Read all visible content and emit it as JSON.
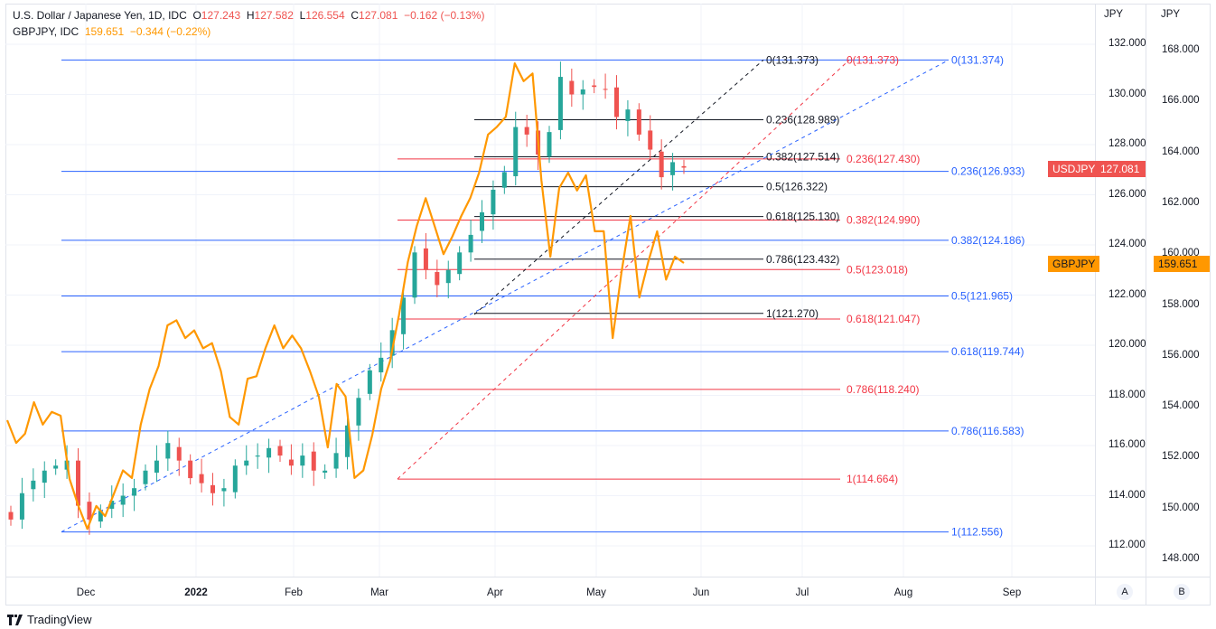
{
  "header": {
    "series1_title": "U.S. Dollar / Japanese Yen, 1D, IDC",
    "o_label": "O",
    "o_value": "127.243",
    "h_label": "H",
    "h_value": "127.582",
    "l_label": "L",
    "l_value": "126.554",
    "c_label": "C",
    "c_value": "127.081",
    "change": "−0.162 (−0.13%)",
    "series2_title": "GBPJPY, IDC",
    "series2_value": "159.651",
    "series2_change": "−0.344 (−0.22%)"
  },
  "axes": {
    "left_unit": "JPY",
    "right_unit": "JPY",
    "usdjpy_ticks": [
      "132.000",
      "130.000",
      "128.000",
      "126.000",
      "124.000",
      "122.000",
      "120.000",
      "118.000",
      "116.000",
      "114.000",
      "112.000"
    ],
    "gbpjpy_ticks": [
      "168.000",
      "166.000",
      "164.000",
      "162.000",
      "160.000",
      "158.000",
      "156.000",
      "154.000",
      "152.000",
      "150.000",
      "148.000"
    ],
    "time_ticks": [
      "Dec",
      "2022",
      "Feb",
      "Mar",
      "Apr",
      "May",
      "Jun",
      "Jul",
      "Aug",
      "Sep"
    ],
    "scale_buttons": [
      "A",
      "B"
    ]
  },
  "badges": {
    "usdjpy_name": "USDJPY",
    "usdjpy_price": "127.081",
    "gbpjpy_name": "GBPJPY",
    "gbpjpy_price": "159.651"
  },
  "colors": {
    "up": "#26a69a",
    "down": "#ef5350",
    "gbpjpy": "#ff9800",
    "fib_blue": "#2962ff",
    "fib_red": "#f23645",
    "fib_black": "#131722",
    "grid": "#f0f3fa"
  },
  "brand": "TradingView",
  "chart_data": {
    "type": "candlestick+line",
    "title": "U.S. Dollar / Japanese Yen, 1D, IDC",
    "ylim_usdjpy": [
      110.5,
      133.5
    ],
    "ylim_gbpjpy": [
      146.5,
      169.5
    ],
    "usdjpy_close": [
      113.05,
      114.1,
      114.6,
      115.0,
      115.2,
      115.4,
      113.6,
      113.05,
      113.4,
      113.8,
      114.0,
      114.3,
      115.0,
      115.4,
      116.1,
      115.4,
      114.7,
      114.5,
      114.1,
      114.3,
      115.2,
      115.4,
      115.6,
      115.9,
      115.6,
      115.2,
      115.6,
      115.0,
      115.0,
      115.7,
      116.8,
      117.9,
      119.0,
      119.5,
      120.6,
      121.9,
      123.7,
      123.0,
      122.4,
      123.0,
      123.7,
      124.4,
      125.3,
      126.2,
      126.9,
      128.7,
      128.4,
      127.6,
      128.5,
      130.7,
      130.0,
      130.2,
      130.3,
      130.2,
      129.1,
      129.4,
      128.4,
      127.8,
      126.7,
      127.3,
      127.081
    ],
    "gbpjpy_close": [
      153.47,
      152.58,
      152.94,
      154.18,
      153.3,
      153.8,
      153.65,
      151.16,
      150.1,
      149.2,
      150.1,
      149.7,
      150.6,
      151.5,
      151.2,
      153.3,
      154.7,
      155.6,
      157.2,
      157.4,
      156.7,
      157.0,
      156.3,
      156.5,
      155.4,
      153.6,
      153.3,
      155.1,
      155.2,
      156.3,
      157.2,
      156.3,
      156.8,
      156.3,
      155.4,
      154.4,
      152.4,
      154.9,
      154.4,
      151.2,
      151.5,
      152.9,
      154.7,
      155.8,
      157.6,
      159.7,
      161.1,
      162.2,
      161.1,
      160.0,
      160.7,
      161.5,
      162.2,
      163.2,
      164.7,
      165.0,
      165.4,
      167.5,
      166.8,
      167.1,
      162.9,
      159.9,
      162.6,
      163.2,
      162.5,
      163.1,
      160.9,
      160.9,
      156.7,
      159.3,
      161.5,
      158.3,
      159.7,
      160.9,
      159.0,
      159.9,
      159.651
    ],
    "fib_retracements": [
      {
        "name": "blue",
        "levels": [
          {
            "ratio": "0",
            "price": "131.374"
          },
          {
            "ratio": "0.236",
            "price": "126.933"
          },
          {
            "ratio": "0.382",
            "price": "124.186"
          },
          {
            "ratio": "0.5",
            "price": "121.965"
          },
          {
            "ratio": "0.618",
            "price": "119.744"
          },
          {
            "ratio": "0.786",
            "price": "116.583"
          },
          {
            "ratio": "1",
            "price": "112.556"
          }
        ]
      },
      {
        "name": "red",
        "levels": [
          {
            "ratio": "0",
            "price": "131.373"
          },
          {
            "ratio": "0.236",
            "price": "127.430"
          },
          {
            "ratio": "0.382",
            "price": "124.990"
          },
          {
            "ratio": "0.5",
            "price": "123.018"
          },
          {
            "ratio": "0.618",
            "price": "121.047"
          },
          {
            "ratio": "0.786",
            "price": "118.240"
          },
          {
            "ratio": "1",
            "price": "114.664"
          }
        ]
      },
      {
        "name": "black",
        "levels": [
          {
            "ratio": "0",
            "price": "131.373"
          },
          {
            "ratio": "0.236",
            "price": "128.989"
          },
          {
            "ratio": "0.382",
            "price": "127.514"
          },
          {
            "ratio": "0.5",
            "price": "126.322"
          },
          {
            "ratio": "0.618",
            "price": "125.130"
          },
          {
            "ratio": "0.786",
            "price": "123.432"
          },
          {
            "ratio": "1",
            "price": "121.270"
          }
        ]
      }
    ],
    "legend": [
      "USDJPY",
      "GBPJPY"
    ]
  }
}
